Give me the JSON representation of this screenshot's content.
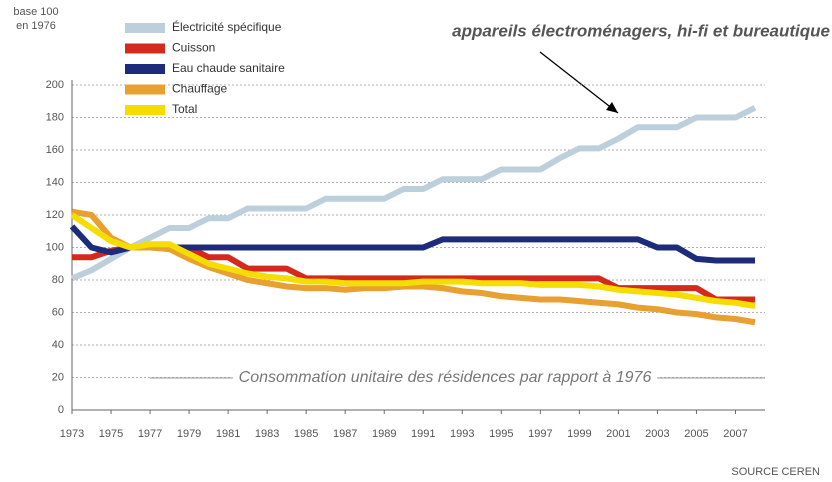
{
  "chart_data": {
    "type": "line",
    "y_label": [
      "base 100",
      "en 1976"
    ],
    "annotation": "appareils électroménagers, hi-fi et bureautique",
    "subtitle": "Consommation unitaire des résidences par rapport à 1976",
    "source": "SOURCE CEREN",
    "x": [
      1973,
      1974,
      1975,
      1976,
      1977,
      1978,
      1979,
      1980,
      1981,
      1982,
      1983,
      1984,
      1985,
      1986,
      1987,
      1988,
      1989,
      1990,
      1991,
      1992,
      1993,
      1994,
      1995,
      1996,
      1997,
      1998,
      1999,
      2000,
      2001,
      2002,
      2003,
      2004,
      2005,
      2006,
      2007,
      2008
    ],
    "xlim": [
      1973,
      2008
    ],
    "xticks": [
      1973,
      1975,
      1977,
      1979,
      1981,
      1983,
      1985,
      1987,
      1989,
      1991,
      1993,
      1995,
      1997,
      1999,
      2001,
      2003,
      2005,
      2007
    ],
    "ylim": [
      0,
      200
    ],
    "yticks": [
      0,
      20,
      40,
      60,
      80,
      100,
      120,
      140,
      160,
      180,
      200
    ],
    "grid": true,
    "legend": "top-left",
    "series": [
      {
        "name": "Électricité spécifique",
        "color": "#bccfda",
        "values": [
          81,
          86,
          93,
          100,
          106,
          112,
          112,
          118,
          118,
          124,
          124,
          124,
          124,
          130,
          130,
          130,
          130,
          136,
          136,
          142,
          142,
          142,
          148,
          148,
          148,
          155,
          161,
          161,
          167,
          174,
          174,
          174,
          180,
          180,
          180,
          186
        ]
      },
      {
        "name": "Cuisson",
        "color": "#d42a1e",
        "values": [
          94,
          94,
          98,
          100,
          100,
          100,
          100,
          94,
          94,
          87,
          87,
          87,
          81,
          81,
          81,
          81,
          81,
          81,
          81,
          81,
          81,
          81,
          81,
          81,
          81,
          81,
          81,
          81,
          75,
          75,
          75,
          75,
          75,
          68,
          68,
          68
        ]
      },
      {
        "name": "Eau chaude sanitaire",
        "color": "#1d2b7a",
        "values": [
          113,
          100,
          97,
          100,
          100,
          100,
          100,
          100,
          100,
          100,
          100,
          100,
          100,
          100,
          100,
          100,
          100,
          100,
          100,
          105,
          105,
          105,
          105,
          105,
          105,
          105,
          105,
          105,
          105,
          105,
          100,
          100,
          93,
          92,
          92,
          92
        ]
      },
      {
        "name": "Chauffage",
        "color": "#e8a030",
        "values": [
          122,
          120,
          106,
          100,
          100,
          99,
          93,
          88,
          84,
          80,
          78,
          76,
          75,
          75,
          74,
          75,
          75,
          76,
          76,
          75,
          73,
          72,
          70,
          69,
          68,
          68,
          67,
          66,
          65,
          63,
          62,
          60,
          59,
          57,
          56,
          54
        ]
      },
      {
        "name": "Total",
        "color": "#f5dd00",
        "values": [
          120,
          112,
          104,
          100,
          102,
          102,
          96,
          90,
          87,
          84,
          82,
          81,
          79,
          79,
          78,
          78,
          78,
          78,
          79,
          79,
          79,
          78,
          78,
          78,
          77,
          77,
          77,
          76,
          74,
          73,
          72,
          71,
          69,
          67,
          66,
          64
        ]
      }
    ]
  }
}
